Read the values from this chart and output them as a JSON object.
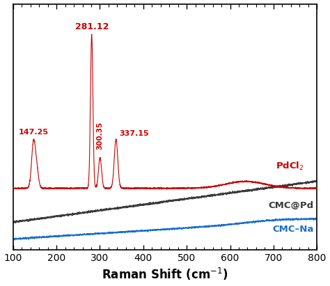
{
  "title": "",
  "xlabel": "Raman Shift (cm$^{-1}$)",
  "xlim": [
    100,
    800
  ],
  "xticks": [
    100,
    200,
    300,
    400,
    500,
    600,
    700,
    800
  ],
  "pdcl2_color": "#cc0000",
  "cmcpd_color": "#3a3a3a",
  "cmcna_color": "#1a6fcc",
  "pdcl2_label": "PdCl$_2$",
  "cmcpd_label": "CMC@Pd",
  "cmcna_label": "CMC–Na",
  "background_color": "#ffffff"
}
